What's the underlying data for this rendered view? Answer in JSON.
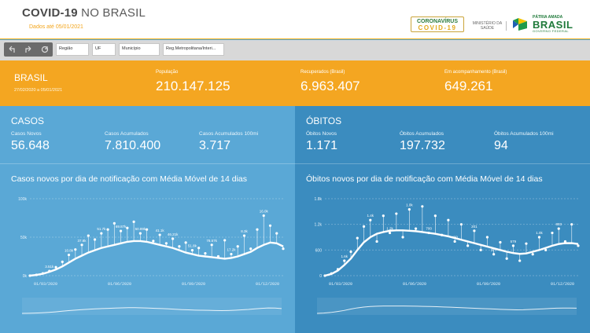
{
  "header": {
    "title_bold": "COVID-19",
    "title_rest": " NO BRASIL",
    "subtitle": "Dados até 05/01/2021",
    "logo_corona_top": "CORONAVÍRUS",
    "logo_corona_bottom": "COVID-19",
    "ministry": "MINISTÉRIO DA SAÚDE",
    "brasil_top": "PÁTRIA AMADA",
    "brasil_main": "BRASIL",
    "brasil_bottom": "GOVERNO FEDERAL"
  },
  "filters": [
    "Região",
    "UF",
    "Município",
    "Reg.Metropolitana/Interi..."
  ],
  "brasil": {
    "name": "BRASIL",
    "date_range": "27/02/2020 a 05/01/2021",
    "stats": [
      {
        "label": "População",
        "value": "210.147.125"
      },
      {
        "label": "Recuperados (Brasil)",
        "value": "6.963.407"
      },
      {
        "label": "Em acompanhamento (Brasil)",
        "value": "649.261"
      }
    ]
  },
  "casos": {
    "title": "CASOS",
    "metrics": [
      {
        "label": "Casos Novos",
        "value": "56.648"
      },
      {
        "label": "Casos Acumulados",
        "value": "7.810.400"
      },
      {
        "label": "Casos Acumulados 100mi",
        "value": "3.717"
      }
    ],
    "chart_title": "Casos novos por dia de notificação com Média Móvel de 14 dias"
  },
  "obitos": {
    "title": "ÓBITOS",
    "metrics": [
      {
        "label": "Óbitos Novos",
        "value": "1.171"
      },
      {
        "label": "Óbitos Acumulados",
        "value": "197.732"
      },
      {
        "label": "Óbitos Acumulados 100mi",
        "value": "94"
      }
    ],
    "chart_title": "Óbitos novos por dia de notificação com Média Móvel de 14 dias"
  },
  "colors": {
    "orange": "#f4a621",
    "blue_left": "#5aa8d6",
    "blue_right": "#3b8cbf",
    "white": "#ffffff"
  },
  "chart_data": [
    {
      "type": "line",
      "y_ticks": [
        "100k",
        "50k",
        "0k"
      ],
      "ylim": [
        0,
        100000
      ],
      "x_ticks": [
        "01/03/2020",
        "01/06/2020",
        "01/09/2020",
        "01/12/2020"
      ],
      "series": [
        {
          "values": [
            0,
            1000,
            2500,
            5000,
            8000,
            12000,
            17000,
            22000,
            26000,
            30000,
            33000,
            36000,
            38000,
            40000,
            42000,
            44000,
            45000,
            45000,
            44000,
            42000,
            40000,
            38000,
            36000,
            33000,
            30000,
            28000,
            26000,
            25000,
            24000,
            23000,
            22000,
            23000,
            25000,
            28000,
            31000,
            36000,
            40000,
            43000,
            42000,
            38000
          ]
        },
        {
          "values": [
            0,
            1000,
            3000,
            6000,
            11000,
            18000,
            27000,
            34000,
            40000,
            52000,
            47000,
            55000,
            60000,
            68000,
            58000,
            62000,
            70000,
            55000,
            60000,
            45000,
            53000,
            42000,
            48000,
            38000,
            43000,
            33000,
            36000,
            29000,
            40000,
            25000,
            46000,
            28000,
            38000,
            52000,
            35000,
            60000,
            78000,
            65000,
            55000,
            35000
          ]
        }
      ],
      "annotations": [
        "3.51k",
        "10.8k",
        "37.8k",
        "51.7k",
        "69.87k",
        "50.89k",
        "41.1k",
        "46.21k",
        "51.8k",
        "78.57k",
        "17.2k",
        "8.3k",
        "16.0k"
      ]
    },
    {
      "type": "line",
      "y_ticks": [
        "1.8k",
        "1.2k",
        "600",
        "0"
      ],
      "ylim": [
        0,
        1800
      ],
      "x_ticks": [
        "01/03/2020",
        "01/06/2020",
        "01/09/2020",
        "01/12/2020"
      ],
      "series": [
        {
          "values": [
            0,
            40,
            120,
            250,
            400,
            600,
            780,
            900,
            980,
            1020,
            1050,
            1060,
            1060,
            1050,
            1040,
            1020,
            1000,
            980,
            950,
            920,
            880,
            840,
            800,
            760,
            720,
            680,
            640,
            600,
            560,
            530,
            510,
            520,
            560,
            600,
            650,
            700,
            740,
            760,
            760,
            740
          ]
        },
        {
          "values": [
            0,
            50,
            150,
            350,
            560,
            880,
            1150,
            1300,
            800,
            1400,
            1000,
            1450,
            900,
            1550,
            1100,
            1620,
            1000,
            1400,
            950,
            1300,
            800,
            1200,
            700,
            1050,
            600,
            900,
            500,
            780,
            400,
            700,
            350,
            750,
            500,
            900,
            600,
            1000,
            1100,
            800,
            1200,
            700
          ]
        }
      ],
      "annotations": [
        "1.6k",
        "1.4k",
        "1.2k",
        "1.0k",
        "700",
        "400",
        "201",
        "377",
        "579",
        "1.0k",
        "803"
      ]
    }
  ]
}
